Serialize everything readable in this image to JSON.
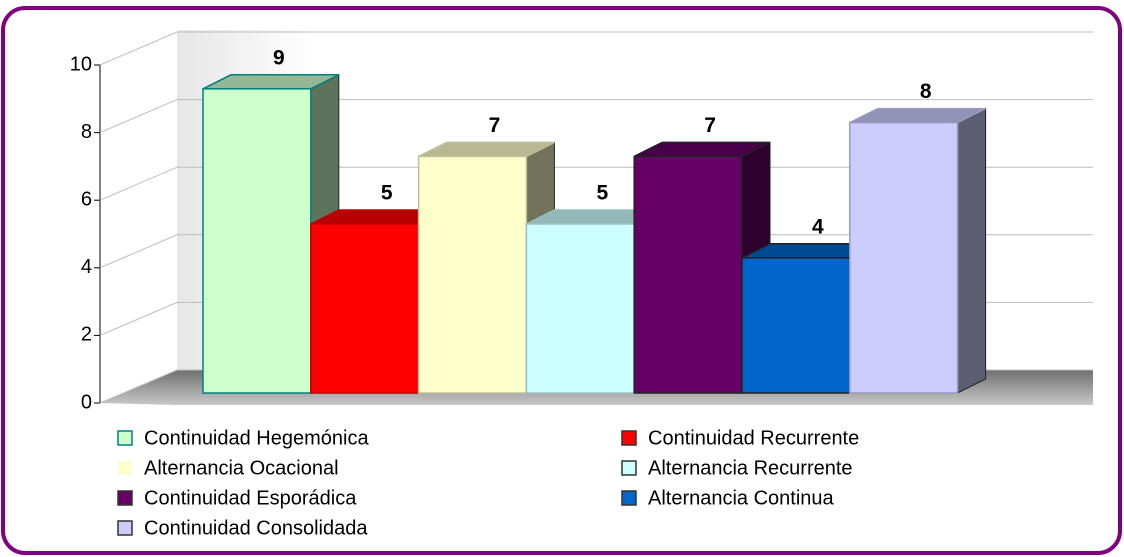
{
  "chart_data": {
    "type": "bar3d",
    "series": [
      {
        "name": "Continuidad Hegemónica",
        "color": "#ccffcc",
        "values": [
          9
        ]
      },
      {
        "name": "Continuidad Recurrente",
        "color": "#ff0000",
        "values": [
          5
        ]
      },
      {
        "name": "Alternancia Ocacional",
        "color": "#ffffcc",
        "values": [
          7
        ]
      },
      {
        "name": "Alternancia Recurrente",
        "color": "#ccffff",
        "values": [
          5
        ]
      },
      {
        "name": "Continuidad Esporádica",
        "color": "#660066",
        "values": [
          7
        ]
      },
      {
        "name": "Alternancia Continua",
        "color": "#0066cc",
        "values": [
          4
        ]
      },
      {
        "name": "Continuidad Consolidada",
        "color": "#ccccff",
        "values": [
          8
        ]
      }
    ],
    "ylim": [
      0,
      10
    ],
    "yticks": [
      0,
      2,
      4,
      6,
      8,
      10
    ],
    "grid": true
  }
}
